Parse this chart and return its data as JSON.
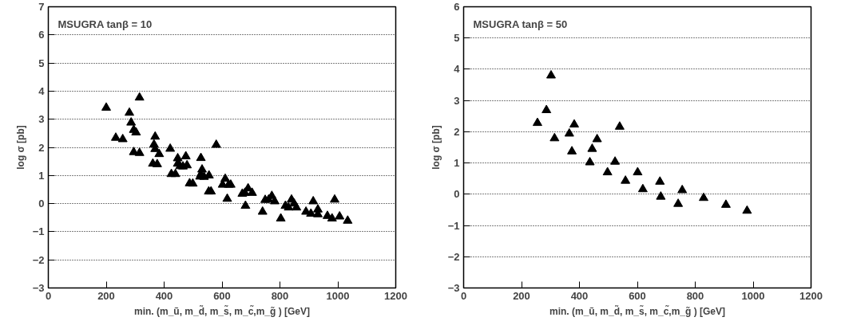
{
  "chart_data": [
    {
      "type": "scatter",
      "title": "MSUGRA tanβ = 10",
      "xlabel": "min. (m_ũ, m_d̃, m_s̃, m_c̃,m_g̃ ) [GeV]",
      "ylabel": "log σ [pb]",
      "xlim": [
        0,
        1200
      ],
      "ylim": [
        -3,
        7
      ],
      "xticks": [
        0,
        200,
        400,
        600,
        800,
        1000,
        1200
      ],
      "yticks": [
        -3,
        -2,
        -1,
        0,
        1,
        2,
        3,
        4,
        5,
        6,
        7
      ],
      "grid": "y",
      "marker": "triangle",
      "series": [
        {
          "color": "#000000",
          "x": [
            200,
            233,
            257,
            280,
            286,
            295,
            303,
            295,
            315,
            315,
            361,
            376,
            369,
            365,
            369,
            383,
            421,
            425,
            439,
            447,
            447,
            455,
            465,
            475,
            479,
            488,
            499,
            527,
            531,
            527,
            524,
            538,
            555,
            554,
            562,
            580,
            602,
            611,
            623,
            630,
            618,
            670,
            679,
            690,
            704,
            681,
            740,
            749,
            761,
            772,
            782,
            803,
            819,
            830,
            840,
            849,
            857,
            890,
            907,
            915,
            931,
            931,
            964,
            980,
            989,
            1006,
            1034
          ],
          "values": [
            3.41,
            2.34,
            2.29,
            3.23,
            2.88,
            2.62,
            2.53,
            1.83,
            1.8,
            3.77,
            1.42,
            1.4,
            2.38,
            2.1,
            1.94,
            1.76,
            1.95,
            1.05,
            1.05,
            1.61,
            1.42,
            1.33,
            1.32,
            1.68,
            1.36,
            0.72,
            0.71,
            1.62,
            1.21,
            1.04,
            0.96,
            0.95,
            1.0,
            0.43,
            0.43,
            2.09,
            0.67,
            0.88,
            0.67,
            0.67,
            0.17,
            0.35,
            0.38,
            0.54,
            0.38,
            -0.08,
            -0.29,
            0.13,
            0.14,
            0.27,
            0.08,
            -0.53,
            -0.08,
            -0.14,
            0.14,
            0.0,
            -0.14,
            -0.29,
            -0.36,
            0.08,
            -0.21,
            -0.38,
            -0.44,
            -0.53,
            0.14,
            -0.46,
            -0.61
          ]
        }
      ]
    },
    {
      "type": "scatter",
      "title": "MSUGRA tanβ = 50",
      "xlabel": "min. (m_ũ, m_d̃, m_s̃, m_c̃,m_g̃ ) [GeV]",
      "ylabel": "log σ [pb]",
      "xlim": [
        0,
        1200
      ],
      "ylim": [
        -3,
        6
      ],
      "xticks": [
        0,
        200,
        400,
        600,
        800,
        1000,
        1200
      ],
      "yticks": [
        -3,
        -2,
        -1,
        0,
        1,
        2,
        3,
        4,
        5,
        6
      ],
      "grid": "y",
      "marker": "triangle",
      "series": [
        {
          "color": "#000000",
          "x": [
            255,
            286,
            302,
            314,
            365,
            382,
            374,
            436,
            444,
            461,
            497,
            523,
            539,
            559,
            601,
            619,
            678,
            681,
            741,
            755,
            829,
            906,
            979
          ],
          "values": [
            2.28,
            2.69,
            3.8,
            1.79,
            1.94,
            2.23,
            1.37,
            1.02,
            1.45,
            1.76,
            0.7,
            1.04,
            2.16,
            0.43,
            0.7,
            0.16,
            0.4,
            -0.08,
            -0.31,
            0.13,
            -0.12,
            -0.34,
            -0.53
          ]
        }
      ]
    }
  ]
}
